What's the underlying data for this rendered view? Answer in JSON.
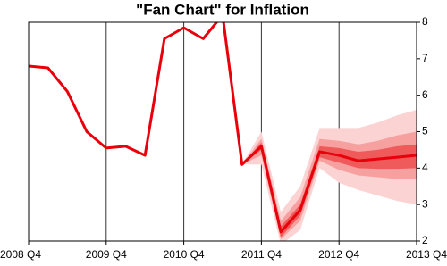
{
  "chart_data": {
    "type": "line",
    "title": "\"Fan Chart\" for Inflation",
    "categories": [
      "2008 Q4",
      null,
      null,
      null,
      "2009 Q4",
      null,
      null,
      null,
      "2010 Q4",
      null,
      null,
      null,
      "2011 Q4",
      null,
      null,
      null,
      "2012 Q4",
      null,
      null,
      null,
      "2013 Q4"
    ],
    "series": [
      {
        "color": "#e8000b",
        "values": [
          6.8,
          6.75,
          6.1,
          5.0,
          4.55,
          4.6,
          4.35,
          7.55,
          7.85,
          7.55,
          8.2,
          4.1,
          4.6,
          2.25,
          2.85,
          4.45,
          4.35,
          4.2,
          4.25,
          4.3,
          4.35
        ]
      }
    ],
    "fan": [
      {
        "color": "#fcd3d3",
        "upper": [
          null,
          null,
          null,
          null,
          null,
          null,
          null,
          null,
          null,
          null,
          null,
          4.1,
          5.0,
          2.8,
          3.5,
          5.1,
          5.1,
          5.1,
          5.25,
          5.45,
          5.6
        ],
        "lower": [
          null,
          null,
          null,
          null,
          null,
          null,
          null,
          null,
          null,
          null,
          null,
          4.1,
          4.1,
          1.9,
          2.3,
          4.0,
          3.6,
          3.4,
          3.25,
          3.1,
          3.0
        ]
      },
      {
        "color": "#f7a0a0",
        "upper": [
          null,
          null,
          null,
          null,
          null,
          null,
          null,
          null,
          null,
          null,
          null,
          4.1,
          4.8,
          2.55,
          3.2,
          4.8,
          4.75,
          4.65,
          4.75,
          4.9,
          5.0
        ],
        "lower": [
          null,
          null,
          null,
          null,
          null,
          null,
          null,
          null,
          null,
          null,
          null,
          4.1,
          4.35,
          2.05,
          2.55,
          4.2,
          3.95,
          3.8,
          3.75,
          3.7,
          3.7
        ]
      },
      {
        "color": "#ef5a5a",
        "upper": [
          null,
          null,
          null,
          null,
          null,
          null,
          null,
          null,
          null,
          null,
          null,
          4.1,
          4.7,
          2.4,
          3.0,
          4.6,
          4.55,
          4.45,
          4.5,
          4.6,
          4.65
        ],
        "lower": [
          null,
          null,
          null,
          null,
          null,
          null,
          null,
          null,
          null,
          null,
          null,
          4.1,
          4.5,
          2.1,
          2.7,
          4.3,
          4.15,
          4.0,
          3.98,
          3.98,
          4.0
        ]
      }
    ],
    "ylim": [
      2,
      8
    ],
    "yticks": [
      2,
      3,
      4,
      5,
      6,
      7,
      8
    ],
    "grid": true,
    "y_axis_side": "right"
  }
}
